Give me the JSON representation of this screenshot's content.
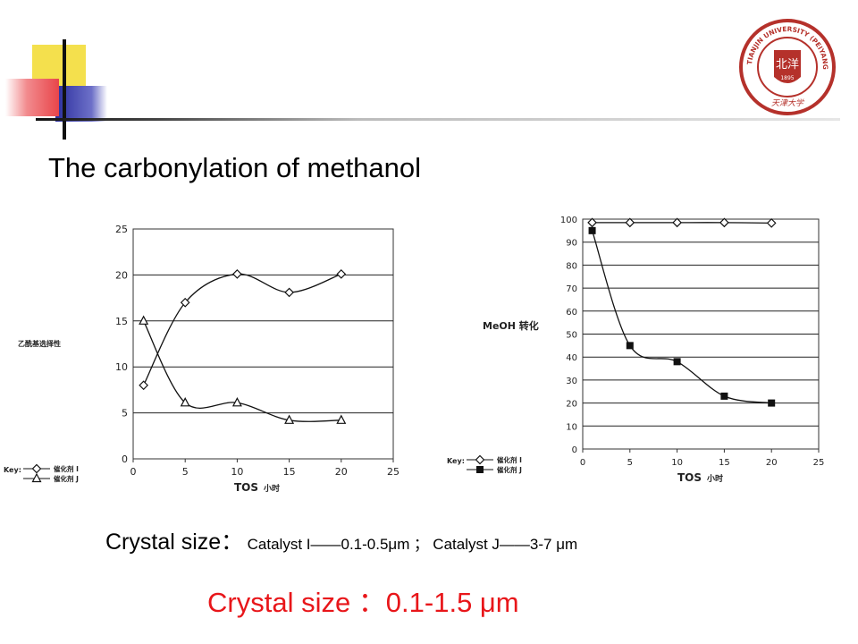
{
  "slide": {
    "title": "The carbonylation of methanol",
    "crystal_line": {
      "prefix": "Crystal size：",
      "catalyst_i": "Catalyst I——0.1-0.5μm",
      "separator": "；",
      "catalyst_j": "Catalyst J——3-7 μm"
    },
    "crystal_red": "Crystal size ：0.1-1.5 μm",
    "colors": {
      "red_text": "#e8161a",
      "emblem": "#b5312b",
      "deco_yellow": "#f4e04d",
      "deco_red": "#e8454a",
      "deco_blue": "#2b2f9e"
    }
  },
  "emblem": {
    "ring_text": "TIANJIN UNIVERSITY (PEIYANG UNIVERSITY)",
    "year": "1895",
    "center_mark": "北洋",
    "bottom_text": "天津大学"
  },
  "chart_data": [
    {
      "type": "line",
      "ylabel": "乙酰基选择性",
      "xlabel": "TOS 小时",
      "xlim": [
        0,
        25
      ],
      "ylim": [
        0,
        25
      ],
      "xticks": [
        "0",
        "5",
        "10",
        "15",
        "20",
        "25"
      ],
      "yticks": [
        "0",
        "5",
        "10",
        "15",
        "20",
        "25"
      ],
      "grid": "horizontal",
      "key": {
        "label": "Key:",
        "items": [
          "催化剂 I",
          "催化剂 J"
        ]
      },
      "series": [
        {
          "name": "催化剂 I",
          "marker": "diamond",
          "x": [
            1,
            5,
            10,
            15,
            20
          ],
          "y": [
            8,
            17,
            20.1,
            18.1,
            20.1
          ]
        },
        {
          "name": "催化剂 J",
          "marker": "triangle",
          "x": [
            1,
            5,
            10,
            15,
            20
          ],
          "y": [
            15,
            6.1,
            6.1,
            4.2,
            4.2
          ]
        }
      ]
    },
    {
      "type": "line",
      "ylabel": "MeOH 转化",
      "xlabel": "TOS 小时",
      "xlim": [
        0,
        25
      ],
      "ylim": [
        0,
        100
      ],
      "xticks": [
        "0",
        "5",
        "10",
        "15",
        "20",
        "25"
      ],
      "yticks": [
        "0",
        "10",
        "20",
        "30",
        "40",
        "50",
        "60",
        "70",
        "80",
        "90",
        "100"
      ],
      "grid": "horizontal",
      "key": {
        "label": "Key:",
        "items": [
          "催化剂 I",
          "催化剂 J"
        ]
      },
      "series": [
        {
          "name": "催化剂 I",
          "marker": "diamond",
          "x": [
            1,
            5,
            10,
            15,
            20
          ],
          "y": [
            98.5,
            98.5,
            98.5,
            98.5,
            98.3
          ]
        },
        {
          "name": "催化剂 J",
          "marker": "square",
          "x": [
            1,
            5,
            10,
            15,
            20
          ],
          "y": [
            95,
            45,
            38,
            23,
            20
          ]
        }
      ]
    }
  ]
}
